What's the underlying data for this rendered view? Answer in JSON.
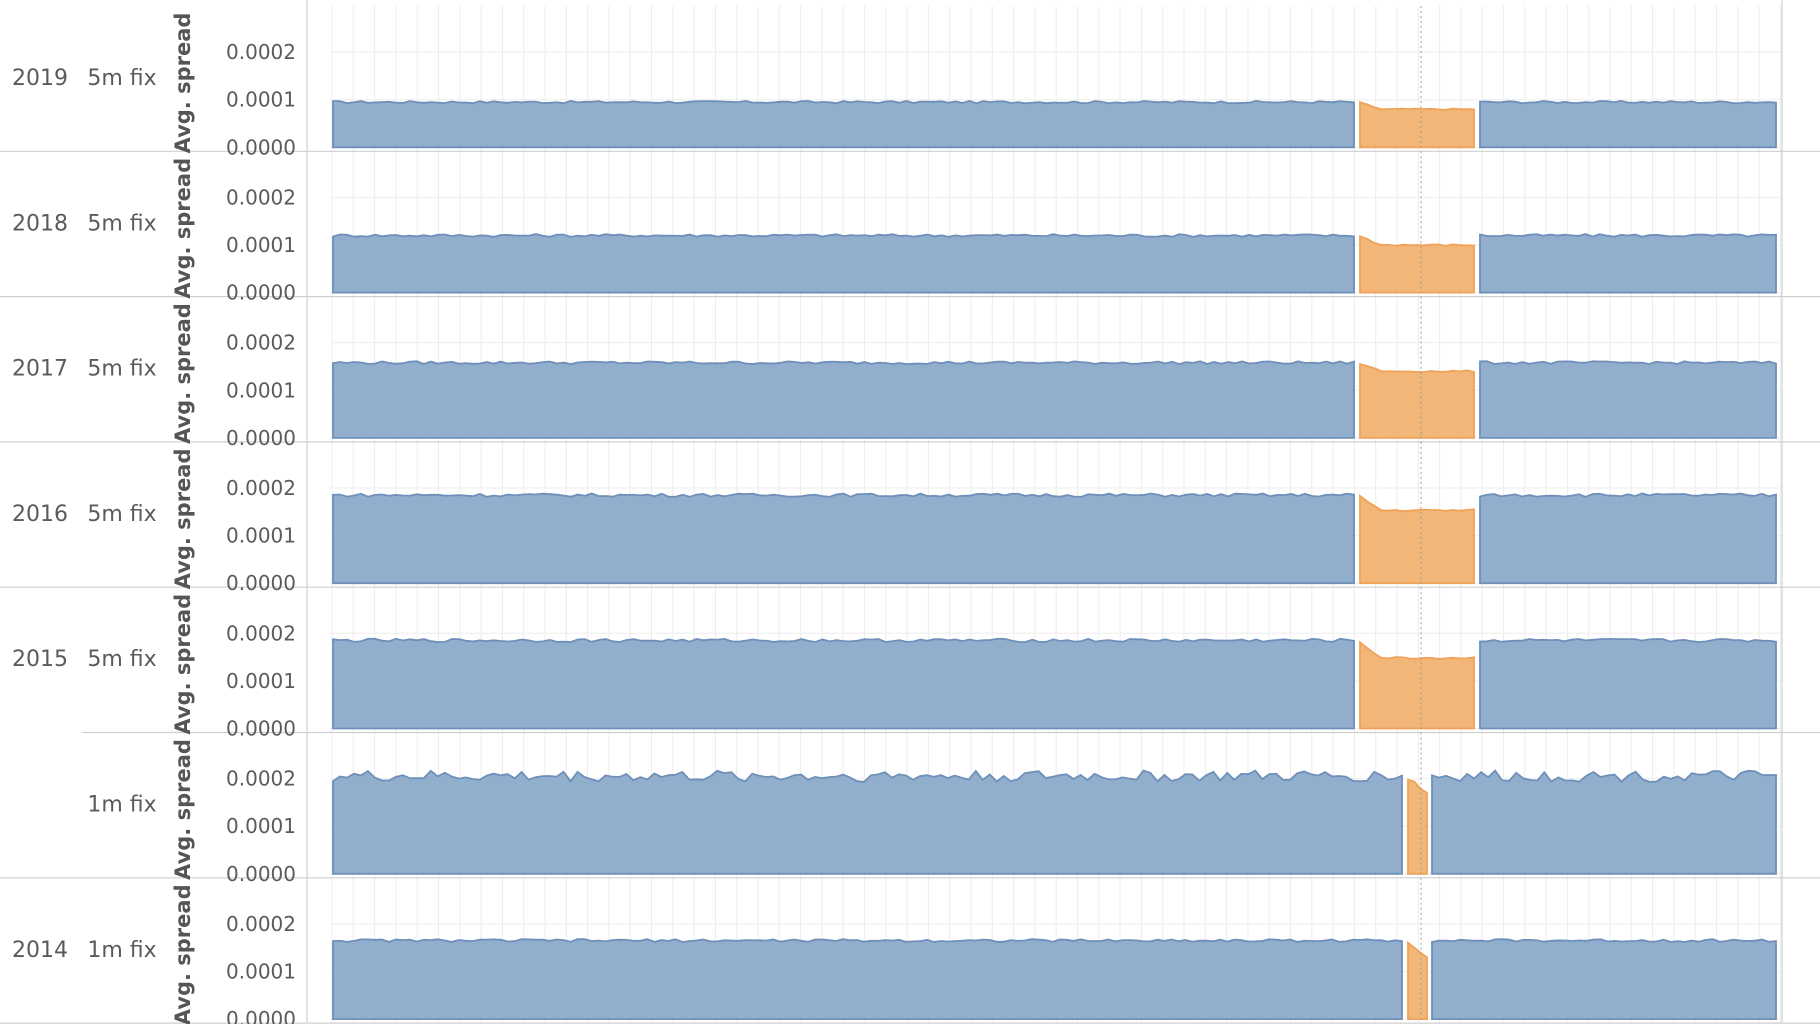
{
  "chart_data": {
    "type": "area",
    "rows": [
      {
        "year": "2019",
        "fix": "5m fix",
        "base": 9.5e-05,
        "fix_level": 8e-05,
        "jitter": 2.5e-06,
        "fix_window": "5m"
      },
      {
        "year": "2018",
        "fix": "5m fix",
        "base": 0.00012,
        "fix_level": 0.0001,
        "jitter": 3e-06,
        "fix_window": "5m"
      },
      {
        "year": "2017",
        "fix": "5m fix",
        "base": 0.000158,
        "fix_level": 0.00014,
        "jitter": 3e-06,
        "fix_window": "5m"
      },
      {
        "year": "2016",
        "fix": "5m fix",
        "base": 0.000185,
        "fix_level": 0.000153,
        "jitter": 3.5e-06,
        "fix_window": "5m"
      },
      {
        "year": "2015",
        "fix": "5m fix",
        "base": 0.000185,
        "fix_level": 0.000148,
        "jitter": 3.5e-06,
        "fix_window": "5m"
      },
      {
        "year": "",
        "fix": "1m fix",
        "base": 0.000205,
        "fix_level": 0.00017,
        "jitter": 1.2e-05,
        "fix_window": "1m"
      },
      {
        "year": "2014",
        "fix": "1m fix",
        "base": 0.000165,
        "fix_level": 0.00013,
        "jitter": 3e-06,
        "fix_window": "1m"
      }
    ],
    "ylabel": "Avg. spread",
    "y_ticks": [
      "0.0000",
      "0.0001",
      "0.0002"
    ],
    "ylim": [
      0,
      0.00028
    ],
    "colors": {
      "normal_fill": "#91aecd",
      "normal_line": "#6d8fb9",
      "fix_fill": "#f2b678",
      "fix_line": "#f0a257"
    },
    "grid": true,
    "reference_line": "dotted vertical at the fix time"
  }
}
